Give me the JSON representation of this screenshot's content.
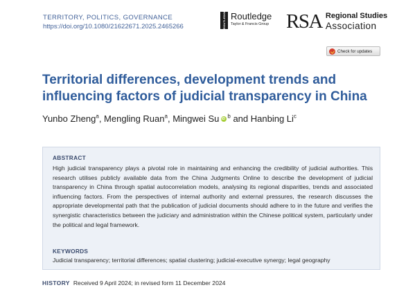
{
  "journal": {
    "name": "TERRITORY, POLITICS, GOVERNANCE",
    "doi": "https://doi.org/10.1080/21622671.2025.2465266"
  },
  "publisher": {
    "routledge_mark": "ROUTLEDGE",
    "routledge_name": "Routledge",
    "routledge_subtitle": "Taylor & Francis Group"
  },
  "society": {
    "letters": "RSA",
    "line1": "Regional Studies",
    "line2": "Association"
  },
  "check_updates": {
    "label": "Check for updates"
  },
  "article": {
    "title": "Territorial differences, development trends and influencing factors of judicial transparency in China"
  },
  "authors": [
    {
      "name": "Yunbo Zheng",
      "sup": "a",
      "sep": ", "
    },
    {
      "name": "Mengling Ruan",
      "sup": "a",
      "sep": ", "
    },
    {
      "name": "Mingwei Su",
      "sup": "b",
      "sep": " and "
    },
    {
      "name": "Hanbing Li",
      "sup": "c",
      "sep": ""
    }
  ],
  "abstract": {
    "heading": "ABSTRACT",
    "text": "High judicial transparency plays a pivotal role in maintaining and enhancing the credibility of judicial authorities. This research utilises publicly available data from the China Judgments Online to describe the development of judicial transparency in China through spatial autocorrelation models, analysing its regional disparities, trends and associated influencing factors. From the perspectives of internal authority and external pressures, the research discusses the appropriate developmental path that the publication of judicial documents should adhere to in the future and verifies the synergistic characteristics between the judiciary and administration within the Chinese political system, particularly under the political and legal framework."
  },
  "keywords": {
    "heading": "KEYWORDS",
    "text": "Judicial transparency; territorial differences; spatial clustering; judicial-executive synergy; legal geography"
  },
  "history": {
    "label": "HISTORY",
    "text": "Received 9 April 2024; in revised form 11 December 2024"
  },
  "colors": {
    "title_blue": "#2f5c9b",
    "link_blue": "#3f5f97",
    "abstract_bg": "#edf1f7",
    "orcid_green": "#a6ce39"
  }
}
